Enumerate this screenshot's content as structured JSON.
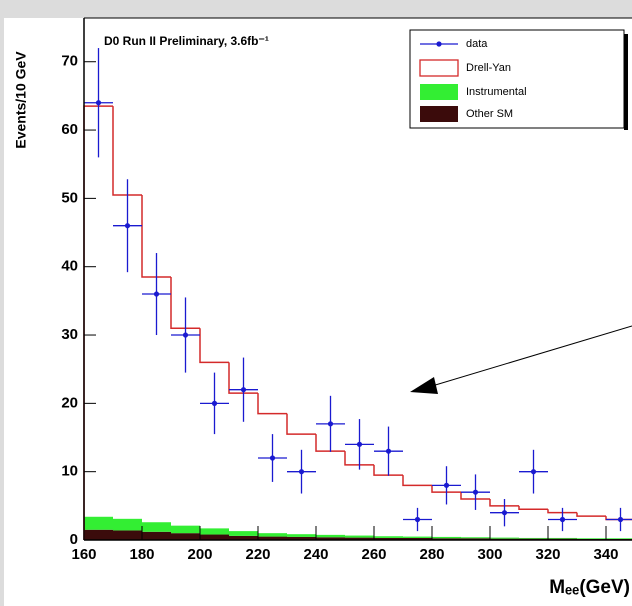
{
  "chart_data": {
    "type": "histogram",
    "title": "D0 Run II Preliminary, 3.6fb⁻¹",
    "xlabel": "Mₑₑ(GeV)",
    "ylabel": "Events/10 GeV",
    "bins": [
      160,
      170,
      180,
      190,
      200,
      210,
      220,
      230,
      240,
      250,
      260,
      270,
      280,
      290,
      300,
      310,
      320,
      330,
      340,
      350
    ],
    "xlim": [
      160,
      350
    ],
    "ylim": [
      0,
      76.4
    ],
    "xticks": [
      160,
      180,
      200,
      220,
      240,
      260,
      280,
      300,
      320,
      340
    ],
    "yticks": [
      0,
      10,
      20,
      30,
      40,
      50,
      60,
      70
    ],
    "legend": "upper right",
    "series": [
      {
        "name": "data",
        "color": "#1a1ad0",
        "x": [
          165,
          175,
          185,
          195,
          205,
          215,
          225,
          235,
          245,
          255,
          265,
          275,
          285,
          295,
          305,
          315,
          325,
          345
        ],
        "values": [
          64,
          46,
          36,
          30,
          20,
          22,
          12,
          10,
          17,
          14,
          13,
          3,
          8,
          7,
          4,
          10,
          3,
          3
        ],
        "errors": [
          8,
          6.8,
          6,
          5.5,
          4.5,
          4.7,
          3.5,
          3.2,
          4.1,
          3.7,
          3.6,
          1.7,
          2.8,
          2.6,
          2,
          3.2,
          1.7,
          1.7
        ]
      },
      {
        "name": "Drell-Yan",
        "color": "#d42a2a",
        "values": [
          63.5,
          50.5,
          38.5,
          31,
          26,
          21.5,
          18.5,
          15.5,
          13,
          11,
          9.5,
          8,
          7,
          6,
          5,
          4.5,
          4,
          3.5,
          3
        ]
      },
      {
        "name": "Instrumental",
        "color": "#33ee33",
        "values": [
          1.9,
          1.7,
          1.4,
          1.1,
          0.9,
          0.7,
          0.5,
          0.4,
          0.35,
          0.3,
          0.25,
          0.2,
          0.2,
          0.15,
          0.15,
          0.1,
          0.1,
          0.1,
          0.1
        ]
      },
      {
        "name": "Other SM",
        "color": "#3b0b0b",
        "values": [
          1.5,
          1.4,
          1.2,
          1.0,
          0.8,
          0.6,
          0.5,
          0.45,
          0.4,
          0.35,
          0.3,
          0.3,
          0.25,
          0.25,
          0.2,
          0.2,
          0.2,
          0.15,
          0.15
        ]
      }
    ]
  }
}
